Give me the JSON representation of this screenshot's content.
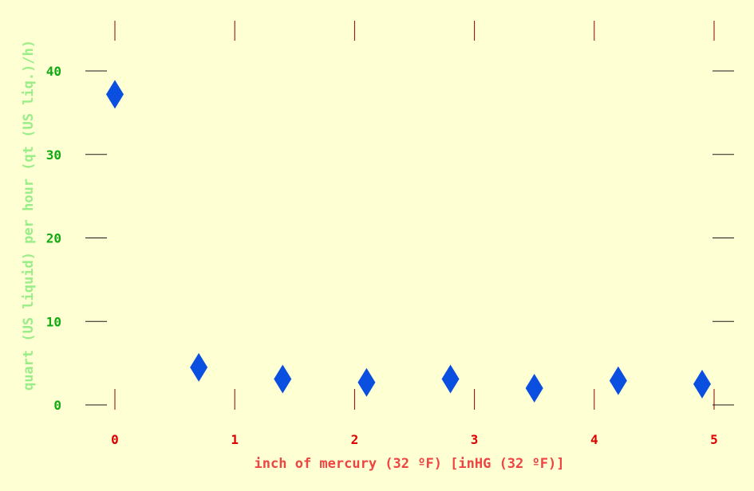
{
  "chart_data": {
    "type": "scatter",
    "xlabel": "inch of mercury (32 ºF) [inHG (32 ºF)]",
    "ylabel": "quart (US liquid) per hour (qt (US liq.)/h)",
    "xlim": [
      0,
      5
    ],
    "ylim": [
      0,
      40
    ],
    "x_ticks": [
      0,
      1,
      2,
      3,
      4,
      5
    ],
    "y_ticks": [
      0,
      10,
      20,
      30,
      40
    ],
    "x_tick_labels": [
      "0",
      "1",
      "2",
      "3",
      "4",
      "5"
    ],
    "y_tick_labels": [
      "0",
      "10",
      "20",
      "30",
      "40"
    ],
    "marker": "diamond",
    "grid": false,
    "series": [
      {
        "x": [
          0.0,
          0.7,
          1.4,
          2.1,
          2.8,
          3.5,
          4.2,
          4.9
        ],
        "y": [
          37.2,
          4.5,
          3.1,
          2.7,
          3.1,
          2.0,
          2.9,
          2.5
        ]
      }
    ],
    "colors": {
      "marker": "#0b4fe0",
      "x_tick_line": "#8b0000",
      "y_tick_line": "#1a1a1a",
      "x_tick_label": "#dd0000",
      "y_tick_label": "#11aa11",
      "x_axis_label": "#ee4444",
      "y_axis_label": "#99ee88",
      "background": "#ffffd4"
    }
  }
}
